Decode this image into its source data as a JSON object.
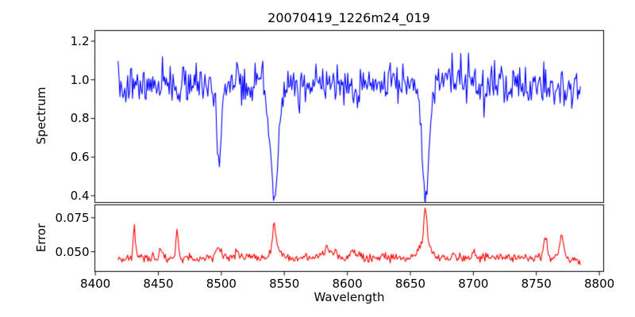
{
  "chart_data": {
    "type": "line",
    "title": "20070419_1226m24_019",
    "xlabel": "Wavelength",
    "grid": false,
    "legend": "none",
    "background": "#ffffff",
    "axis_color": "#000000",
    "xlim": [
      8399.6,
      8803.4
    ],
    "x_tick_values": [
      8400,
      8450,
      8500,
      8550,
      8600,
      8650,
      8700,
      8750,
      8800
    ],
    "x_tick_labels": [
      "8400",
      "8450",
      "8500",
      "8550",
      "8600",
      "8650",
      "8700",
      "8750",
      "8800"
    ],
    "panels": [
      {
        "name": "spectrum",
        "ylabel": "Spectrum",
        "color": "#0000ff",
        "ylim": [
          0.365,
          1.255
        ],
        "y_tick_values": [
          0.4,
          0.6,
          0.8,
          1.0,
          1.2
        ],
        "y_tick_labels": [
          "0.4",
          "0.6",
          "0.8",
          "1.0",
          "1.2"
        ],
        "series": {
          "x_start": 8418,
          "x_end": 8785,
          "n_points": 480,
          "continuum_poly": [
            0.985,
            -0.002,
            -0.033
          ],
          "poly_center": 8600,
          "poly_scale": 200,
          "noise_sigma": 0.05,
          "spike_prob": 0.02,
          "spike_amp": 0.1,
          "max_value": 1.21,
          "seed": 7,
          "absorption_lines": [
            {
              "center": 8498.0,
              "fractional_depth": 0.447,
              "sigma": 1.6,
              "min_value": 0.54
            },
            {
              "center": 8542.1,
              "fractional_depth": 0.593,
              "sigma": 3.0,
              "min_value": 0.4
            },
            {
              "center": 8662.1,
              "fractional_depth": 0.582,
              "sigma": 2.8,
              "min_value": 0.41
            }
          ]
        }
      },
      {
        "name": "error",
        "ylabel": "Error",
        "color": "#ff0000",
        "ylim": [
          0.0355,
          0.0845
        ],
        "y_tick_values": [
          0.05,
          0.075
        ],
        "y_tick_labels": [
          "0.050",
          "0.075"
        ],
        "series": {
          "x_start": 8418,
          "x_end": 8785,
          "n_points": 480,
          "baseline": 0.0455,
          "noise_sigma": 0.0017,
          "seed": 42,
          "spikes": [
            {
              "center": 8431,
              "height": 0.0255,
              "sigma": 0.9,
              "peak_value": 0.071
            },
            {
              "center": 8452,
              "height": 0.006,
              "sigma": 1.2
            },
            {
              "center": 8465,
              "height": 0.022,
              "sigma": 0.8,
              "peak_value": 0.067
            },
            {
              "center": 8498,
              "height": 0.008,
              "sigma": 2.2
            },
            {
              "center": 8512,
              "height": 0.006,
              "sigma": 1.5
            },
            {
              "center": 8542,
              "height": 0.021,
              "sigma": 1.1,
              "peak_value": 0.073
            },
            {
              "center": 8543,
              "height": 0.006,
              "sigma": 4.0
            },
            {
              "center": 8585,
              "height": 0.0055,
              "sigma": 5.0
            },
            {
              "center": 8605,
              "height": 0.004,
              "sigma": 3.0
            },
            {
              "center": 8661,
              "height": 0.011,
              "sigma": 4.5
            },
            {
              "center": 8662,
              "height": 0.026,
              "sigma": 1.2,
              "peak_value": 0.081
            },
            {
              "center": 8700,
              "height": 0.004,
              "sigma": 2.0
            },
            {
              "center": 8757,
              "height": 0.016,
              "sigma": 1.4,
              "peak_value": 0.063
            },
            {
              "center": 8770,
              "height": 0.015,
              "sigma": 1.6,
              "peak_value": 0.062
            }
          ]
        }
      }
    ]
  }
}
